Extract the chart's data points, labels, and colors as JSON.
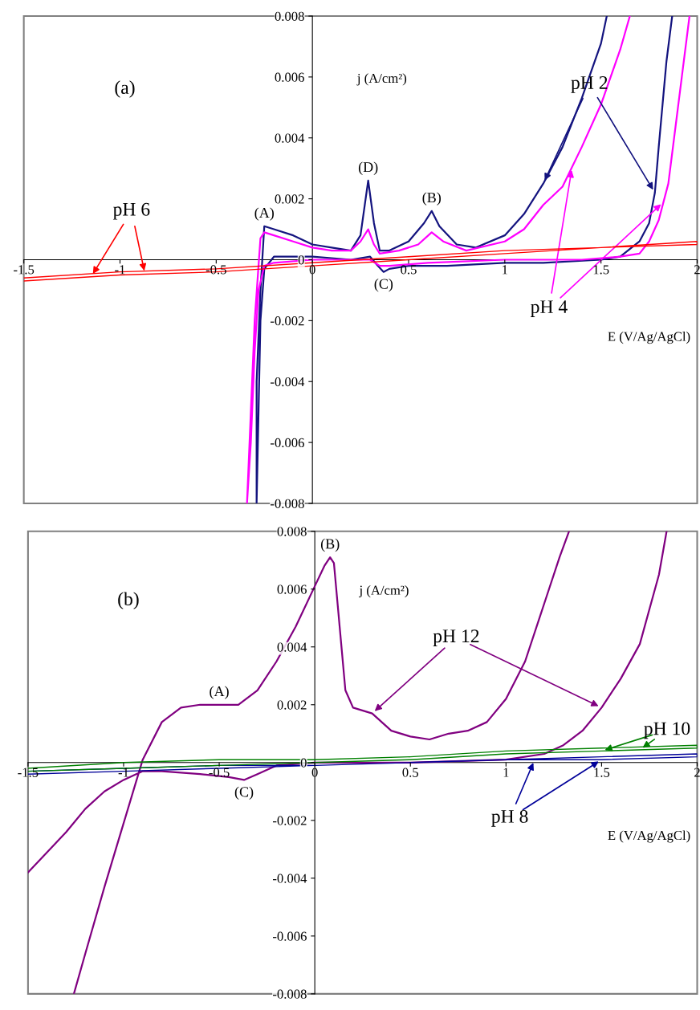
{
  "chart_data": [
    {
      "type": "line",
      "title": "(a)",
      "xlabel": "E (V/Ag/AgCl)",
      "ylabel": "j (A/cm²)",
      "xlim": [
        -1.5,
        2
      ],
      "xticks": [
        -1.5,
        -1,
        -0.5,
        0,
        0.5,
        1,
        1.5,
        2
      ],
      "ylim": [
        -0.008,
        0.008
      ],
      "yticks": [
        -0.008,
        -0.006,
        -0.004,
        -0.002,
        0,
        0.002,
        0.004,
        0.006,
        0.008
      ],
      "series": [
        {
          "name": "pH 2",
          "color": "#14147f",
          "x": [
            -0.29,
            -0.29,
            -0.27,
            -0.25,
            -0.2,
            -0.1,
            0.0,
            0.1,
            0.2,
            0.25,
            0.29,
            0.32,
            0.35,
            0.4,
            0.5,
            0.58,
            0.62,
            0.66,
            0.75,
            0.85,
            1.0,
            1.1,
            1.2,
            1.3,
            1.4,
            1.5,
            1.53,
            1.7,
            1.87,
            1.84,
            1.8,
            1.78,
            1.75,
            1.7,
            1.6,
            1.5,
            1.2,
            1.0,
            0.7,
            0.5,
            0.4,
            0.37,
            0.34,
            0.3,
            0.2,
            0.0,
            -0.2,
            -0.25,
            -0.27,
            -0.28,
            -0.29
          ],
          "values": [
            -0.008,
            -0.004,
            -0.001,
            0.0011,
            0.001,
            0.0008,
            0.0005,
            0.0004,
            0.0003,
            0.0008,
            0.0026,
            0.0012,
            0.0003,
            0.0003,
            0.0006,
            0.0012,
            0.0016,
            0.0011,
            0.0005,
            0.0004,
            0.0008,
            0.0015,
            0.0025,
            0.0037,
            0.0053,
            0.0071,
            0.008,
            null,
            0.008,
            0.0065,
            0.0037,
            0.0022,
            0.0012,
            0.0006,
            0.0001,
            0.0,
            -0.0001,
            -0.0001,
            -0.0002,
            -0.0002,
            -0.0003,
            -0.0004,
            -0.0002,
            0.0001,
            0.0,
            0.0001,
            0.0001,
            -0.0003,
            -0.002,
            -0.005,
            -0.008
          ]
        },
        {
          "name": "pH 4",
          "color": "#ff00ff",
          "x": [
            -0.34,
            -0.32,
            -0.3,
            -0.27,
            -0.25,
            -0.2,
            -0.1,
            0.0,
            0.1,
            0.2,
            0.25,
            0.29,
            0.32,
            0.35,
            0.45,
            0.55,
            0.62,
            0.68,
            0.8,
            1.0,
            1.1,
            1.2,
            1.3,
            1.4,
            1.5,
            1.6,
            1.65,
            1.8,
            1.96,
            1.92,
            1.88,
            1.85,
            1.8,
            1.75,
            1.7,
            1.6,
            1.4,
            1.0,
            0.6,
            0.4,
            0.35,
            0.3,
            0.1,
            0.0,
            -0.2,
            -0.25,
            -0.28,
            -0.3,
            -0.32,
            -0.34
          ],
          "values": [
            -0.008,
            -0.005,
            -0.002,
            0.0007,
            0.0009,
            0.0008,
            0.0006,
            0.0004,
            0.0003,
            0.0003,
            0.0006,
            0.001,
            0.0005,
            0.0002,
            0.0003,
            0.0005,
            0.0009,
            0.0006,
            0.0003,
            0.0006,
            0.001,
            0.0018,
            0.0024,
            0.0037,
            0.0051,
            0.0069,
            0.008,
            null,
            0.008,
            0.006,
            0.004,
            0.0025,
            0.0013,
            0.0006,
            0.0002,
            0.0001,
            0.0,
            0.0,
            -0.0001,
            -0.0002,
            -0.0002,
            0.0,
            0.0,
            0.0,
            -0.0001,
            -0.0002,
            -0.001,
            -0.003,
            -0.006,
            -0.008
          ]
        },
        {
          "name": "pH 6",
          "color": "#ff0000",
          "x": [
            -1.5,
            -1,
            -0.5,
            0,
            0.5,
            1,
            1.5,
            2,
            2,
            1.5,
            1,
            0.5,
            0,
            -0.5,
            -1,
            -1.5
          ],
          "values": [
            -0.0007,
            -0.0005,
            -0.0004,
            -0.0002,
            0.0,
            0.0002,
            0.0004,
            0.0005,
            0.0006,
            0.0004,
            0.0003,
            0.0001,
            -0.0001,
            -0.0003,
            -0.0004,
            -0.0006
          ]
        }
      ],
      "annotations": [
        {
          "text": "(A)",
          "x": -0.25,
          "y": 0.0011
        },
        {
          "text": "(D)",
          "x": 0.29,
          "y": 0.0026
        },
        {
          "text": "(B)",
          "x": 0.62,
          "y": 0.0016
        },
        {
          "text": "(C)",
          "x": 0.37,
          "y": -0.0004
        }
      ]
    },
    {
      "type": "line",
      "title": "(b)",
      "xlabel": "E (V/Ag/AgCl)",
      "ylabel": "j (A/cm²)",
      "xlim": [
        -1.5,
        2
      ],
      "xticks": [
        -1.5,
        -1,
        -0.5,
        0,
        0.5,
        1,
        1.5,
        2
      ],
      "ylim": [
        -0.008,
        0.008
      ],
      "yticks": [
        -0.008,
        -0.006,
        -0.004,
        -0.002,
        0,
        0.002,
        0.004,
        0.006,
        0.008
      ],
      "series": [
        {
          "name": "pH 8",
          "color": "#000099",
          "x": [
            -1.5,
            -1,
            -0.5,
            0,
            0.5,
            1,
            1.5,
            2,
            2,
            1.5,
            1,
            0.5,
            0,
            -0.5,
            -1,
            -1.5
          ],
          "values": [
            -0.0004,
            -0.0003,
            -0.0002,
            -0.0001,
            0.0,
            0.0001,
            0.0001,
            0.0002,
            0.0003,
            0.0002,
            0.0001,
            0.0,
            -0.0001,
            -0.0001,
            -0.0002,
            -0.0003
          ]
        },
        {
          "name": "pH 10",
          "color": "#008000",
          "x": [
            -1.5,
            -1,
            -0.5,
            0,
            0.5,
            1,
            1.5,
            2,
            2,
            1.5,
            1,
            0.5,
            0,
            -0.5,
            -1,
            -1.5
          ],
          "values": [
            -0.0003,
            -0.0002,
            -0.0001,
            0.0,
            0.0001,
            0.0003,
            0.0004,
            0.0005,
            0.0006,
            0.0005,
            0.0004,
            0.0002,
            0.0001,
            0.0001,
            0.0,
            -0.0002
          ]
        },
        {
          "name": "pH 12",
          "color": "#800080",
          "x": [
            -1.26,
            -1.2,
            -1.1,
            -1.0,
            -0.9,
            -0.8,
            -0.7,
            -0.6,
            -0.5,
            -0.4,
            -0.3,
            -0.2,
            -0.1,
            0.0,
            0.05,
            0.08,
            0.1,
            0.13,
            0.16,
            0.2,
            0.3,
            0.4,
            0.5,
            0.6,
            0.7,
            0.8,
            0.9,
            1.0,
            1.1,
            1.2,
            1.28,
            1.33,
            1.6,
            1.84,
            1.8,
            1.7,
            1.6,
            1.5,
            1.4,
            1.3,
            1.2,
            1.0,
            0.5,
            0.0,
            -0.2,
            -0.3,
            -0.37,
            -0.45,
            -0.6,
            -0.8,
            -0.9,
            -1.0,
            -1.1,
            -1.2,
            -1.3,
            -1.4,
            -1.5
          ],
          "values": [
            -0.008,
            -0.0066,
            -0.0043,
            -0.0021,
            0.0001,
            0.0014,
            0.0019,
            0.002,
            0.002,
            0.002,
            0.0025,
            0.0035,
            0.0047,
            0.0061,
            0.0068,
            0.0071,
            0.0069,
            0.0047,
            0.0025,
            0.0019,
            0.0017,
            0.0011,
            0.0009,
            0.0008,
            0.001,
            0.0011,
            0.0014,
            0.0022,
            0.0035,
            0.0055,
            0.0071,
            0.008,
            null,
            0.008,
            0.0065,
            0.0041,
            0.0029,
            0.0019,
            0.0011,
            0.0006,
            0.0003,
            0.0001,
            0.0,
            0.0,
            -0.0001,
            -0.0004,
            -0.0006,
            -0.0005,
            -0.0004,
            -0.0003,
            -0.0003,
            -0.0006,
            -0.001,
            -0.0016,
            -0.0024,
            -0.0031,
            -0.0038
          ]
        }
      ],
      "annotations": [
        {
          "text": "(B)",
          "x": 0.08,
          "y": 0.0071
        },
        {
          "text": "(A)",
          "x": -0.5,
          "y": 0.002
        },
        {
          "text": "(C)",
          "x": -0.37,
          "y": -0.0006
        }
      ]
    }
  ]
}
